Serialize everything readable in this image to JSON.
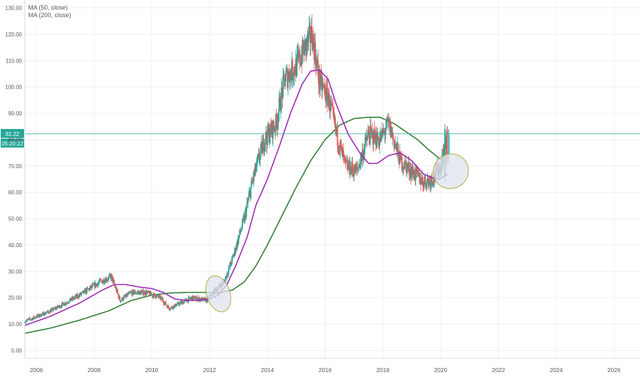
{
  "legend": {
    "ma50_label": "MA (50, close)",
    "ma200_label": "MA (200, close)"
  },
  "price_tag": {
    "value": "82.22",
    "countdown": "05:20:22"
  },
  "colors": {
    "up": "#26a69a",
    "down": "#ef5350",
    "ma50": "#9c27b0",
    "ma200": "#2e7d32",
    "price_line": "#26a69a",
    "ellipse_fill": "#dfe3ee",
    "ellipse_stroke": "#a7b23a",
    "grid": "#eef0f3",
    "axis_text": "#555555"
  },
  "chart_data": {
    "type": "candlestick",
    "x_range": [
      2005.6,
      2026.9
    ],
    "y_range": [
      -3,
      133
    ],
    "y_ticks": [
      "0.00",
      "10.00",
      "20.00",
      "30.00",
      "40.00",
      "50.00",
      "60.00",
      "70.00",
      "80.00",
      "90.00",
      "100.00",
      "110.00",
      "120.00",
      "130.00"
    ],
    "x_ticks": [
      "2006",
      "2008",
      "2010",
      "2012",
      "2014",
      "2016",
      "2018",
      "2020",
      "2022",
      "2024",
      "2026"
    ],
    "price_anchors": [
      [
        2005.6,
        11
      ],
      [
        2006.5,
        15
      ],
      [
        2007.5,
        21
      ],
      [
        2008.2,
        26
      ],
      [
        2008.6,
        28
      ],
      [
        2008.9,
        19
      ],
      [
        2009.3,
        22
      ],
      [
        2009.8,
        22
      ],
      [
        2010.3,
        20
      ],
      [
        2010.6,
        16
      ],
      [
        2011.0,
        18
      ],
      [
        2011.4,
        20
      ],
      [
        2011.9,
        19
      ],
      [
        2012.2,
        23
      ],
      [
        2012.5,
        26
      ],
      [
        2012.8,
        35
      ],
      [
        2013.2,
        50
      ],
      [
        2013.5,
        65
      ],
      [
        2013.9,
        80
      ],
      [
        2014.3,
        86
      ],
      [
        2014.6,
        103
      ],
      [
        2015.0,
        108
      ],
      [
        2015.3,
        115
      ],
      [
        2015.55,
        120
      ],
      [
        2015.8,
        102
      ],
      [
        2016.1,
        96
      ],
      [
        2016.4,
        82
      ],
      [
        2016.7,
        70
      ],
      [
        2017.1,
        68
      ],
      [
        2017.5,
        82
      ],
      [
        2017.9,
        80
      ],
      [
        2018.2,
        86
      ],
      [
        2018.6,
        72
      ],
      [
        2019.0,
        68
      ],
      [
        2019.4,
        64
      ],
      [
        2019.7,
        65
      ],
      [
        2020.0,
        70
      ],
      [
        2020.25,
        82
      ]
    ],
    "ma50": [
      [
        2005.6,
        9.5
      ],
      [
        2006.5,
        13
      ],
      [
        2007.5,
        18
      ],
      [
        2008.3,
        23
      ],
      [
        2008.7,
        25
      ],
      [
        2009.1,
        25
      ],
      [
        2009.6,
        24
      ],
      [
        2010.0,
        23.5
      ],
      [
        2010.4,
        22
      ],
      [
        2010.8,
        19.5
      ],
      [
        2011.2,
        19
      ],
      [
        2011.6,
        19
      ],
      [
        2012.0,
        19.5
      ],
      [
        2012.3,
        21
      ],
      [
        2012.6,
        25
      ],
      [
        2012.9,
        32
      ],
      [
        2013.3,
        43
      ],
      [
        2013.6,
        55
      ],
      [
        2014.0,
        65
      ],
      [
        2014.4,
        77
      ],
      [
        2014.8,
        90
      ],
      [
        2015.2,
        101
      ],
      [
        2015.5,
        106
      ],
      [
        2015.8,
        106.5
      ],
      [
        2016.1,
        103
      ],
      [
        2016.4,
        93
      ],
      [
        2016.8,
        82
      ],
      [
        2017.2,
        75
      ],
      [
        2017.5,
        71
      ],
      [
        2017.8,
        71
      ],
      [
        2018.2,
        74
      ],
      [
        2018.6,
        75
      ],
      [
        2019.0,
        72
      ],
      [
        2019.4,
        67
      ],
      [
        2019.7,
        65.5
      ],
      [
        2019.95,
        65
      ],
      [
        2020.25,
        67
      ]
    ],
    "ma200": [
      [
        2005.6,
        6.5
      ],
      [
        2006.5,
        8.5
      ],
      [
        2007.5,
        11.5
      ],
      [
        2008.5,
        15
      ],
      [
        2009.3,
        19
      ],
      [
        2010.0,
        21
      ],
      [
        2010.6,
        21.8
      ],
      [
        2011.2,
        22
      ],
      [
        2011.8,
        22
      ],
      [
        2012.3,
        21.8
      ],
      [
        2012.8,
        23
      ],
      [
        2013.2,
        26
      ],
      [
        2013.6,
        32
      ],
      [
        2014.0,
        40
      ],
      [
        2014.5,
        51
      ],
      [
        2015.0,
        62
      ],
      [
        2015.5,
        72
      ],
      [
        2016.0,
        80
      ],
      [
        2016.5,
        85.5
      ],
      [
        2017.0,
        88
      ],
      [
        2017.5,
        88.5
      ],
      [
        2017.9,
        88.5
      ],
      [
        2018.4,
        86
      ],
      [
        2018.8,
        83
      ],
      [
        2019.2,
        80
      ],
      [
        2019.6,
        76
      ],
      [
        2020.0,
        72.5
      ],
      [
        2020.25,
        71
      ]
    ],
    "current_price": 82.22
  }
}
